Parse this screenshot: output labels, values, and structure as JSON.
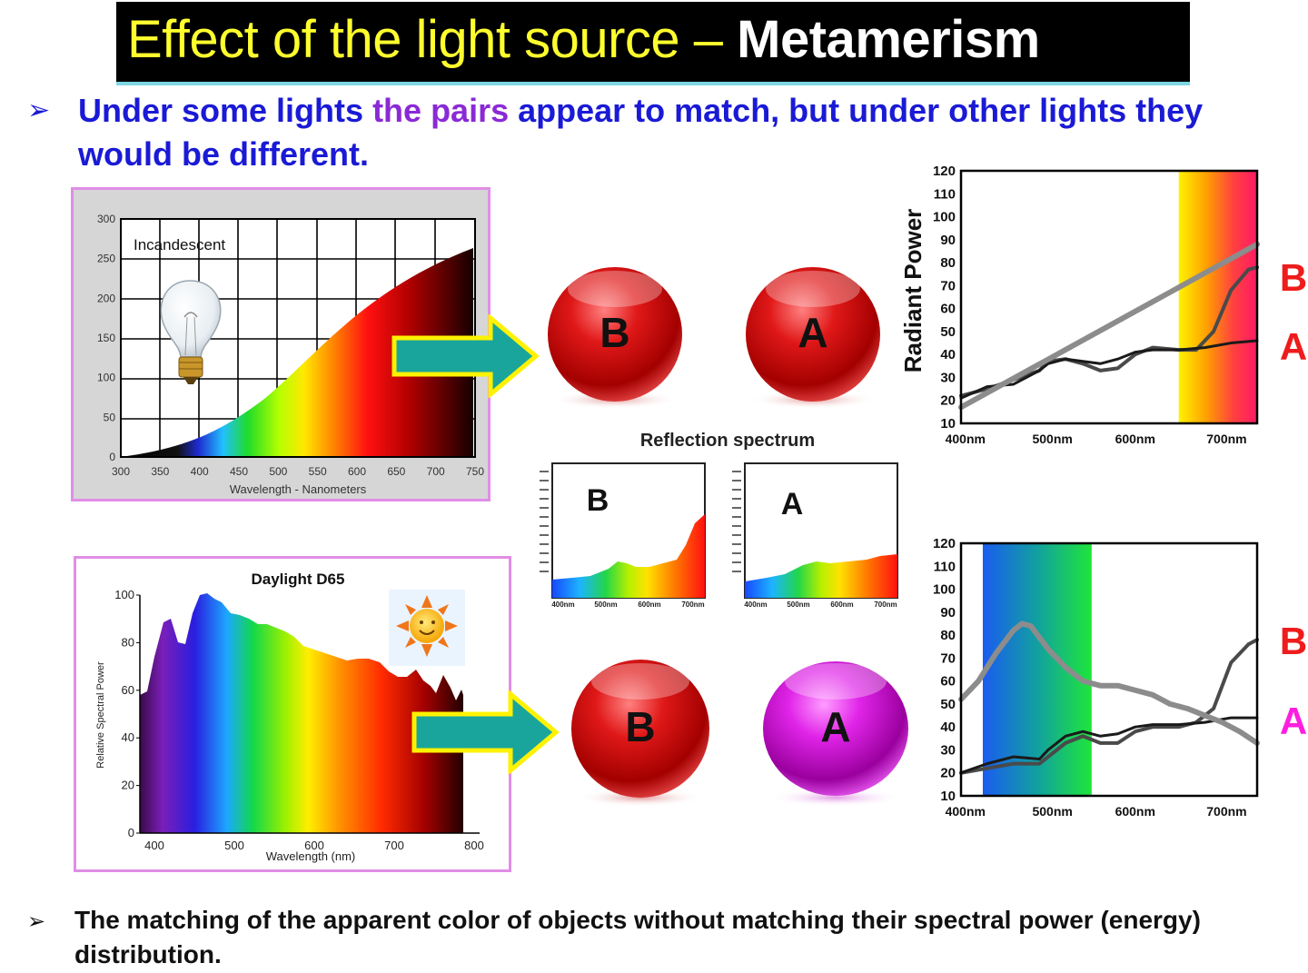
{
  "title": {
    "part1": "Effect of the light source – ",
    "part2": "Metamerism"
  },
  "bullet1": {
    "pre": "Under some lights ",
    "highlight": "the pairs",
    "post": " appear to match, but under other lights they would be different."
  },
  "bullet2": {
    "text": "The matching of the apparent color of objects without matching their spectral power (energy) distribution."
  },
  "incandescent": {
    "label": "Incandescent",
    "xlabel": "Wavelength - Nanometers",
    "x_ticks": [
      "300",
      "350",
      "400",
      "450",
      "500",
      "550",
      "600",
      "650",
      "700",
      "750"
    ],
    "y_ticks": [
      "0",
      "50",
      "100",
      "150",
      "200",
      "250",
      "300"
    ]
  },
  "daylight": {
    "title": "Daylight D65",
    "xlabel": "Wavelength (nm)",
    "ylabel": "Relative Spectral Power",
    "x_ticks": [
      "400",
      "500",
      "600",
      "700",
      "800"
    ],
    "y_ticks": [
      "0",
      "20",
      "40",
      "60",
      "80",
      "100"
    ]
  },
  "spheres": {
    "top_b": "B",
    "top_a": "A",
    "bottom_b": "B",
    "bottom_a": "A"
  },
  "reflection": {
    "title": "Reflection spectrum",
    "b_label": "B",
    "a_label": "A",
    "x_ticks": [
      "400nm",
      "500nm",
      "600nm",
      "700nm"
    ]
  },
  "chart_data": [
    {
      "type": "line",
      "ylabel": "Radiant Power",
      "x_ticks": [
        "400nm",
        "500nm",
        "600nm",
        "700nm"
      ],
      "y_ticks": [
        "10",
        "20",
        "30",
        "40",
        "50",
        "60",
        "70",
        "80",
        "90",
        "100",
        "110",
        "120"
      ],
      "ylim": [
        10,
        120
      ],
      "xlim": [
        400,
        740
      ],
      "band": [
        650,
        740
      ],
      "series": [
        {
          "name": "B",
          "color": "#ee1c1c",
          "x": [
            400,
            430,
            460,
            490,
            500,
            520,
            540,
            560,
            580,
            600,
            620,
            650,
            670,
            690,
            710,
            730,
            740
          ],
          "y": [
            22,
            25,
            29,
            33,
            37,
            38,
            36,
            33,
            34,
            40,
            43,
            42,
            42,
            50,
            68,
            77,
            78
          ]
        },
        {
          "name": "A",
          "color": "#ee1c1c",
          "x": [
            400,
            430,
            460,
            490,
            500,
            520,
            540,
            560,
            580,
            600,
            620,
            650,
            680,
            710,
            740
          ],
          "y": [
            21,
            26,
            27,
            33,
            36,
            38,
            37,
            36,
            38,
            41,
            42,
            42,
            43,
            45,
            46
          ]
        },
        {
          "name": "illuminant",
          "x": [
            400,
            740
          ],
          "y": [
            17,
            88
          ]
        }
      ]
    },
    {
      "type": "line",
      "y_ticks": [
        "10",
        "20",
        "30",
        "40",
        "50",
        "60",
        "70",
        "80",
        "90",
        "100",
        "110",
        "120"
      ],
      "x_ticks": [
        "400nm",
        "500nm",
        "600nm",
        "700nm"
      ],
      "ylim": [
        10,
        120
      ],
      "xlim": [
        400,
        740
      ],
      "band": [
        425,
        550
      ],
      "series": [
        {
          "name": "B",
          "color": "#ee1c1c",
          "x": [
            400,
            430,
            460,
            490,
            500,
            520,
            540,
            560,
            580,
            600,
            620,
            650,
            670,
            690,
            710,
            730,
            740
          ],
          "y": [
            20,
            22,
            24,
            24,
            27,
            33,
            36,
            33,
            33,
            38,
            40,
            40,
            42,
            48,
            68,
            76,
            78
          ]
        },
        {
          "name": "A",
          "color": "#ff1fe0",
          "x": [
            400,
            430,
            460,
            490,
            500,
            520,
            540,
            560,
            580,
            600,
            620,
            650,
            680,
            710,
            740
          ],
          "y": [
            20,
            24,
            27,
            26,
            30,
            36,
            38,
            36,
            37,
            40,
            41,
            41,
            42,
            44,
            44
          ]
        },
        {
          "name": "illuminant",
          "x": [
            400,
            420,
            440,
            460,
            470,
            480,
            500,
            520,
            540,
            560,
            580,
            600,
            620,
            640,
            660,
            680,
            700,
            720,
            740
          ],
          "y": [
            52,
            60,
            72,
            82,
            85,
            84,
            74,
            66,
            60,
            58,
            58,
            56,
            54,
            50,
            48,
            45,
            42,
            38,
            33
          ]
        }
      ]
    }
  ]
}
